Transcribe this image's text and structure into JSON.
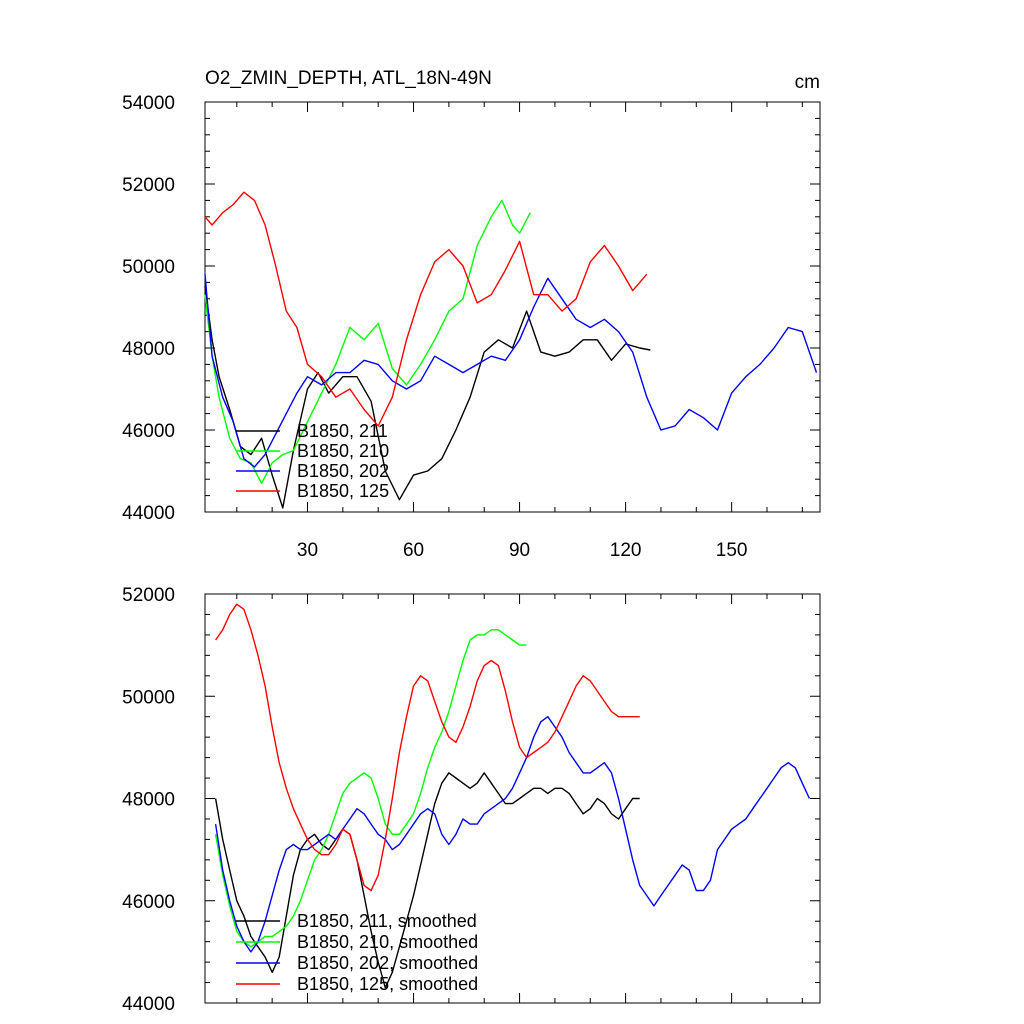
{
  "chart_data": [
    {
      "type": "line",
      "title": "O2_ZMIN_DEPTH, ATL_18N-49N",
      "units": "cm",
      "xlim": [
        1,
        175
      ],
      "ylim": [
        44000,
        54000
      ],
      "xticks": [
        "30",
        "60",
        "90",
        "120",
        "150"
      ],
      "xtick_values": [
        30,
        60,
        90,
        120,
        150
      ],
      "yticks": [
        "44000",
        "46000",
        "48000",
        "50000",
        "52000",
        "54000"
      ],
      "ytick_values": [
        44000,
        46000,
        48000,
        50000,
        52000,
        54000
      ],
      "legend_position": "lower-left",
      "series": [
        {
          "name": "B1850, 211",
          "color": "#000000",
          "x": [
            1,
            3,
            5,
            8,
            11,
            14,
            17,
            20,
            23,
            26,
            30,
            33,
            36,
            40,
            44,
            48,
            52,
            56,
            60,
            64,
            68,
            72,
            76,
            80,
            84,
            88,
            92,
            96,
            100,
            104,
            108,
            112,
            116,
            120,
            124,
            127
          ],
          "y": [
            49500,
            48200,
            47300,
            46500,
            45600,
            45400,
            45800,
            44900,
            44100,
            45500,
            47000,
            47400,
            46900,
            47300,
            47300,
            46700,
            45000,
            44300,
            44900,
            45000,
            45300,
            46000,
            46800,
            47900,
            48200,
            48000,
            48900,
            47900,
            47800,
            47900,
            48200,
            48200,
            47700,
            48100,
            48000,
            47950
          ]
        },
        {
          "name": "B1850, 210",
          "color": "#00ff00",
          "x": [
            1,
            3,
            5,
            8,
            11,
            14,
            17,
            20,
            23,
            26,
            30,
            34,
            38,
            42,
            46,
            50,
            54,
            58,
            62,
            66,
            70,
            74,
            78,
            82,
            85,
            88,
            90,
            93
          ],
          "y": [
            49300,
            47800,
            46800,
            45800,
            45300,
            45200,
            44700,
            45200,
            45400,
            45500,
            46200,
            46900,
            47600,
            48500,
            48200,
            48600,
            47500,
            47100,
            47600,
            48200,
            48900,
            49200,
            50500,
            51200,
            51600,
            51000,
            50800,
            51300
          ]
        },
        {
          "name": "B1850, 202",
          "color": "#0000ff",
          "x": [
            1,
            3,
            6,
            9,
            12,
            15,
            18,
            21,
            24,
            27,
            30,
            34,
            38,
            42,
            46,
            50,
            54,
            58,
            62,
            66,
            70,
            74,
            78,
            82,
            86,
            90,
            94,
            98,
            102,
            106,
            110,
            114,
            118,
            122,
            126,
            130,
            134,
            138,
            142,
            146,
            150,
            154,
            158,
            162,
            166,
            170,
            174
          ],
          "y": [
            49800,
            47800,
            46800,
            46200,
            45300,
            45100,
            45400,
            45900,
            46400,
            46900,
            47300,
            47100,
            47400,
            47400,
            47700,
            47600,
            47200,
            47000,
            47200,
            47800,
            47600,
            47400,
            47600,
            47800,
            47700,
            48200,
            49000,
            49700,
            49200,
            48700,
            48500,
            48700,
            48400,
            47900,
            46800,
            46000,
            46100,
            46500,
            46300,
            46000,
            46900,
            47300,
            47600,
            48000,
            48500,
            48400,
            47400
          ]
        },
        {
          "name": "B1850, 125",
          "color": "#ff0000",
          "x": [
            1,
            3,
            6,
            9,
            12,
            15,
            18,
            21,
            24,
            27,
            30,
            34,
            38,
            42,
            46,
            50,
            54,
            58,
            62,
            66,
            70,
            74,
            78,
            82,
            86,
            90,
            94,
            98,
            102,
            106,
            110,
            114,
            118,
            122,
            126
          ],
          "y": [
            51200,
            51000,
            51300,
            51500,
            51800,
            51600,
            51000,
            50000,
            48900,
            48500,
            47600,
            47300,
            46800,
            47000,
            46500,
            46100,
            46800,
            48200,
            49300,
            50100,
            50400,
            50000,
            49100,
            49300,
            49900,
            50600,
            49300,
            49300,
            48900,
            49200,
            50100,
            50500,
            50000,
            49400,
            49800
          ]
        }
      ]
    },
    {
      "type": "line",
      "xlim": [
        1,
        175
      ],
      "ylim": [
        44000,
        52000
      ],
      "yticks": [
        "44000",
        "46000",
        "48000",
        "50000",
        "52000"
      ],
      "ytick_values": [
        44000,
        46000,
        48000,
        50000,
        52000
      ],
      "legend_position": "lower-left",
      "series": [
        {
          "name": "B1850, 211, smoothed",
          "color": "#000000",
          "x": [
            4,
            6,
            8,
            10,
            12,
            14,
            16,
            18,
            20,
            22,
            24,
            26,
            28,
            30,
            32,
            34,
            36,
            38,
            40,
            42,
            44,
            46,
            48,
            50,
            52,
            54,
            56,
            58,
            60,
            62,
            64,
            66,
            68,
            70,
            72,
            74,
            76,
            78,
            80,
            82,
            84,
            86,
            88,
            90,
            92,
            94,
            96,
            98,
            100,
            102,
            104,
            106,
            108,
            110,
            112,
            114,
            116,
            118,
            120,
            122,
            124
          ],
          "y": [
            48000,
            47200,
            46600,
            46000,
            45700,
            45300,
            45100,
            44900,
            44600,
            44900,
            45700,
            46500,
            47000,
            47200,
            47300,
            47100,
            47000,
            47200,
            47400,
            47300,
            46800,
            46100,
            45400,
            44800,
            44300,
            44600,
            45100,
            45600,
            46100,
            46700,
            47300,
            47900,
            48300,
            48500,
            48400,
            48300,
            48200,
            48300,
            48500,
            48300,
            48100,
            47900,
            47900,
            48000,
            48100,
            48200,
            48200,
            48100,
            48200,
            48200,
            48100,
            47900,
            47700,
            47800,
            48000,
            47900,
            47700,
            47600,
            47800,
            48000,
            48000
          ]
        },
        {
          "name": "B1850, 210, smoothed",
          "color": "#00ff00",
          "x": [
            4,
            6,
            8,
            10,
            12,
            14,
            16,
            18,
            20,
            22,
            24,
            26,
            28,
            30,
            32,
            34,
            36,
            38,
            40,
            42,
            44,
            46,
            48,
            50,
            52,
            54,
            56,
            58,
            60,
            62,
            64,
            66,
            68,
            70,
            72,
            74,
            76,
            78,
            80,
            82,
            84,
            86,
            88,
            90,
            92
          ],
          "y": [
            47300,
            46500,
            45900,
            45400,
            45200,
            45100,
            45200,
            45300,
            45300,
            45400,
            45500,
            45700,
            46000,
            46400,
            46800,
            47000,
            47300,
            47700,
            48100,
            48300,
            48400,
            48500,
            48400,
            48000,
            47500,
            47300,
            47300,
            47500,
            47700,
            48100,
            48600,
            49000,
            49300,
            49700,
            50200,
            50700,
            51100,
            51200,
            51200,
            51300,
            51300,
            51200,
            51100,
            51000,
            51000
          ]
        },
        {
          "name": "B1850, 202, smoothed",
          "color": "#0000ff",
          "x": [
            4,
            6,
            8,
            10,
            12,
            14,
            16,
            18,
            20,
            22,
            24,
            26,
            28,
            30,
            32,
            34,
            36,
            38,
            40,
            42,
            44,
            46,
            48,
            50,
            52,
            54,
            56,
            58,
            60,
            62,
            64,
            66,
            68,
            70,
            72,
            74,
            76,
            78,
            80,
            82,
            84,
            86,
            88,
            90,
            92,
            94,
            96,
            98,
            100,
            102,
            104,
            106,
            108,
            110,
            112,
            114,
            116,
            118,
            120,
            122,
            124,
            126,
            128,
            130,
            132,
            134,
            136,
            138,
            140,
            142,
            144,
            146,
            148,
            150,
            152,
            154,
            156,
            158,
            160,
            162,
            164,
            166,
            168,
            170,
            172
          ],
          "y": [
            47500,
            46600,
            46000,
            45500,
            45200,
            45000,
            45200,
            45600,
            46100,
            46600,
            47000,
            47100,
            47000,
            47000,
            47100,
            47200,
            47300,
            47200,
            47400,
            47600,
            47800,
            47700,
            47500,
            47300,
            47200,
            47000,
            47100,
            47300,
            47500,
            47700,
            47800,
            47700,
            47300,
            47100,
            47300,
            47600,
            47500,
            47500,
            47700,
            47800,
            47900,
            48000,
            48200,
            48500,
            48800,
            49200,
            49500,
            49600,
            49400,
            49200,
            48900,
            48700,
            48500,
            48500,
            48600,
            48700,
            48500,
            48000,
            47400,
            46800,
            46300,
            46100,
            45900,
            46100,
            46300,
            46500,
            46700,
            46600,
            46200,
            46200,
            46400,
            47000,
            47200,
            47400,
            47500,
            47600,
            47800,
            48000,
            48200,
            48400,
            48600,
            48700,
            48600,
            48300,
            48000
          ]
        },
        {
          "name": "B1850, 125, smoothed",
          "color": "#ff0000",
          "x": [
            4,
            6,
            8,
            10,
            12,
            14,
            16,
            18,
            20,
            22,
            24,
            26,
            28,
            30,
            32,
            34,
            36,
            38,
            40,
            42,
            44,
            46,
            48,
            50,
            52,
            54,
            56,
            58,
            60,
            62,
            64,
            66,
            68,
            70,
            72,
            74,
            76,
            78,
            80,
            82,
            84,
            86,
            88,
            90,
            92,
            94,
            96,
            98,
            100,
            102,
            104,
            106,
            108,
            110,
            112,
            114,
            116,
            118,
            120,
            122,
            124
          ],
          "y": [
            51100,
            51300,
            51600,
            51800,
            51700,
            51300,
            50800,
            50200,
            49400,
            48700,
            48200,
            47800,
            47500,
            47200,
            47000,
            46900,
            46900,
            47100,
            47400,
            47300,
            46800,
            46300,
            46200,
            46500,
            47200,
            48000,
            48900,
            49600,
            50200,
            50400,
            50300,
            49900,
            49500,
            49200,
            49100,
            49400,
            49800,
            50300,
            50600,
            50700,
            50600,
            50100,
            49500,
            49000,
            48800,
            48900,
            49000,
            49100,
            49300,
            49600,
            49900,
            50200,
            50400,
            50300,
            50100,
            49900,
            49700,
            49600,
            49600,
            49600,
            49600
          ]
        }
      ]
    }
  ]
}
